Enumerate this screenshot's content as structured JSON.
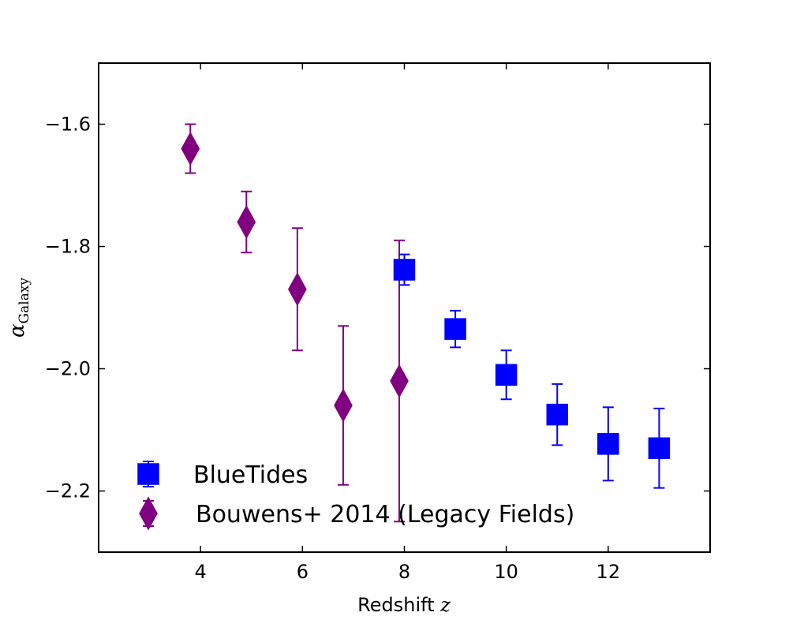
{
  "chart_data": {
    "type": "scatter",
    "title": "",
    "xlabel": "Redshift",
    "xlabel_var": "z",
    "ylabel_main": "α",
    "ylabel_sub": "Galaxy",
    "xlim": [
      2,
      14
    ],
    "ylim": [
      -2.3,
      -1.5
    ],
    "xticks": [
      4,
      6,
      8,
      10,
      12
    ],
    "xtick_labels": [
      "4",
      "6",
      "8",
      "10",
      "12"
    ],
    "yticks": [
      -1.6,
      -1.8,
      -2.0,
      -2.2
    ],
    "ytick_labels": [
      "−1.6",
      "−1.8",
      "−2.0",
      "−2.2"
    ],
    "legend_position": "lower-left",
    "series": [
      {
        "name": "BlueTides",
        "marker": "square",
        "color": "#0000ff",
        "points": [
          {
            "x": 8,
            "y": -1.838,
            "err_lo": 0.025,
            "err_hi": 0.025
          },
          {
            "x": 9,
            "y": -1.935,
            "err_lo": 0.03,
            "err_hi": 0.03
          },
          {
            "x": 10,
            "y": -2.01,
            "err_lo": 0.04,
            "err_hi": 0.04
          },
          {
            "x": 11,
            "y": -2.075,
            "err_lo": 0.05,
            "err_hi": 0.05
          },
          {
            "x": 12,
            "y": -2.123,
            "err_lo": 0.06,
            "err_hi": 0.06
          },
          {
            "x": 13,
            "y": -2.13,
            "err_lo": 0.065,
            "err_hi": 0.065
          }
        ]
      },
      {
        "name": "Bouwens+ 2014 (Legacy Fields)",
        "marker": "diamond",
        "color": "#800080",
        "points": [
          {
            "x": 3.8,
            "y": -1.64,
            "err_lo": 0.04,
            "err_hi": 0.04
          },
          {
            "x": 4.9,
            "y": -1.76,
            "err_lo": 0.05,
            "err_hi": 0.05
          },
          {
            "x": 5.9,
            "y": -1.87,
            "err_lo": 0.1,
            "err_hi": 0.1
          },
          {
            "x": 6.8,
            "y": -2.06,
            "err_lo": 0.13,
            "err_hi": 0.13
          },
          {
            "x": 7.9,
            "y": -2.02,
            "err_lo": 0.23,
            "err_hi": 0.23
          }
        ]
      }
    ]
  }
}
